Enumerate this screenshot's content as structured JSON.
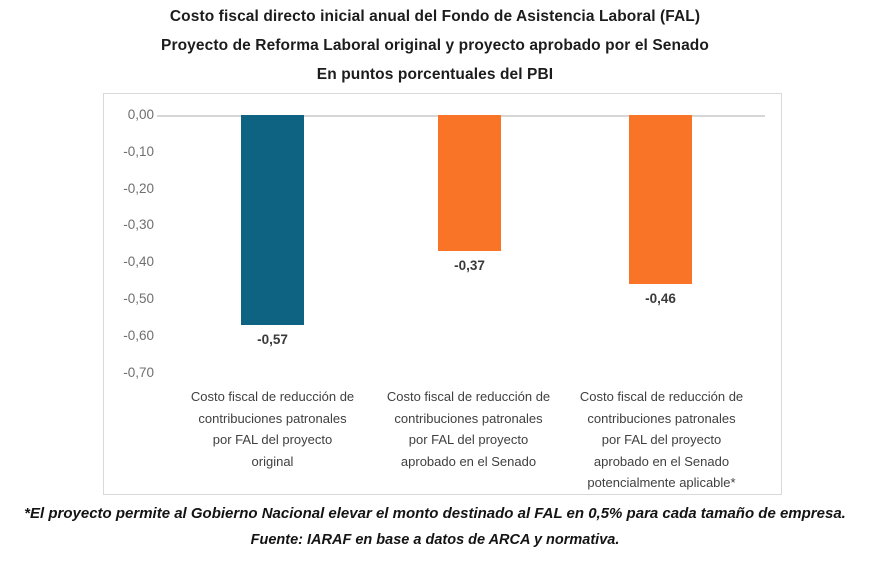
{
  "title": {
    "line1": "Costo fiscal directo inicial anual del Fondo de Asistencia Laboral (FAL)",
    "line2": "Proyecto de Reforma Laboral original y proyecto aprobado por el Senado",
    "line3": "En puntos porcentuales del PBI"
  },
  "chart_data": {
    "type": "bar",
    "title": "Costo fiscal directo inicial anual del Fondo de Asistencia Laboral (FAL)",
    "subtitle": "Proyecto de Reforma Laboral original y proyecto aprobado por el Senado",
    "units": "En puntos porcentuales del PBI",
    "categories": [
      "Costo fiscal de reducción de contribuciones patronales por FAL del proyecto original",
      "Costo fiscal de reducción de contribuciones patronales por FAL del proyecto aprobado en el Senado",
      "Costo fiscal de reducción de contribuciones patronales por FAL del proyecto aprobado en el Senado potencialmente aplicable*"
    ],
    "categories_lines": [
      [
        "Costo fiscal de reducción de",
        "contribuciones patronales",
        "por FAL del proyecto",
        "original"
      ],
      [
        "Costo fiscal de reducción de",
        "contribuciones patronales",
        "por FAL del proyecto",
        "aprobado en el Senado"
      ],
      [
        "Costo fiscal de reducción de",
        "contribuciones patronales",
        "por FAL del proyecto",
        "aprobado en el Senado",
        "potencialmente aplicable*"
      ]
    ],
    "values": [
      -0.57,
      -0.37,
      -0.46
    ],
    "value_labels": [
      "-0,57",
      "-0,37",
      "-0,46"
    ],
    "bar_colors": [
      "#0e6382",
      "#fa7428",
      "#fa7428"
    ],
    "ylim": [
      -0.7,
      0
    ],
    "ytick_step": 0.1,
    "ytick_labels": [
      "0,00",
      "-0,10",
      "-0,20",
      "-0,30",
      "-0,40",
      "-0,50",
      "-0,60",
      "-0,70"
    ],
    "grid": "zero-baseline-only",
    "legend": "none",
    "xlabel": "",
    "ylabel": ""
  },
  "footnote": "*El proyecto permite al Gobierno Nacional elevar el monto destinado al FAL en 0,5% para cada tamaño de empresa.",
  "source": "Fuente: IARAF en base a datos de ARCA y normativa."
}
